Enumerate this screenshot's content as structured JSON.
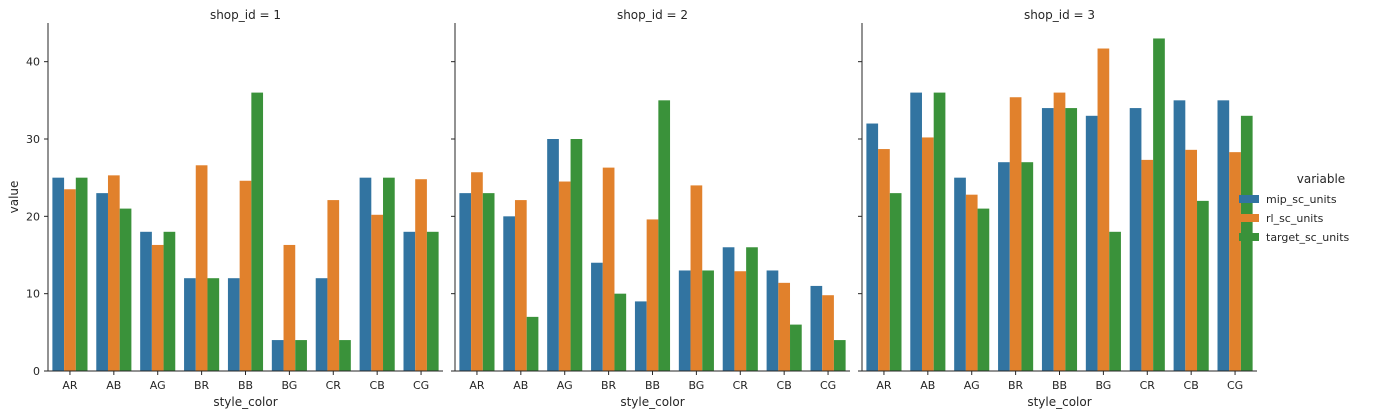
{
  "chart_data": {
    "type": "bar",
    "ylabel": "value",
    "xlabel": "style_color",
    "ylim": [
      0,
      45
    ],
    "yticks": [
      0,
      10,
      20,
      30,
      40
    ],
    "categories": [
      "AR",
      "AB",
      "AG",
      "BR",
      "BB",
      "BG",
      "CR",
      "CB",
      "CG"
    ],
    "legend": {
      "title": "variable",
      "placement": "right",
      "entries": [
        "mip_sc_units",
        "rl_sc_units",
        "target_sc_units"
      ]
    },
    "colors": [
      "#3274a1",
      "#e1812c",
      "#3a923a"
    ],
    "panels": [
      {
        "title": "shop_id = 1",
        "series": [
          {
            "name": "mip_sc_units",
            "values": [
              25,
              23,
              18,
              12,
              12,
              4,
              12,
              25,
              18
            ]
          },
          {
            "name": "rl_sc_units",
            "values": [
              23.5,
              25.3,
              16.3,
              26.6,
              24.6,
              16.3,
              22.1,
              20.2,
              24.8
            ]
          },
          {
            "name": "target_sc_units",
            "values": [
              25,
              21,
              18,
              12,
              36,
              4,
              4,
              25,
              18
            ]
          }
        ]
      },
      {
        "title": "shop_id = 2",
        "series": [
          {
            "name": "mip_sc_units",
            "values": [
              23,
              20,
              30,
              14,
              9,
              13,
              16,
              13,
              11
            ]
          },
          {
            "name": "rl_sc_units",
            "values": [
              25.7,
              22.1,
              24.5,
              26.3,
              19.6,
              24.0,
              12.9,
              11.4,
              9.8
            ]
          },
          {
            "name": "target_sc_units",
            "values": [
              23,
              7,
              30,
              10,
              35,
              13,
              16,
              6,
              4
            ]
          }
        ]
      },
      {
        "title": "shop_id = 3",
        "series": [
          {
            "name": "mip_sc_units",
            "values": [
              32,
              36,
              25,
              27,
              34,
              33,
              34,
              35,
              35
            ]
          },
          {
            "name": "rl_sc_units",
            "values": [
              28.7,
              30.2,
              22.8,
              35.4,
              36.0,
              41.7,
              27.3,
              28.6,
              28.3
            ]
          },
          {
            "name": "target_sc_units",
            "values": [
              23,
              36,
              21,
              27,
              34,
              18,
              43,
              22,
              33
            ]
          }
        ]
      }
    ]
  }
}
